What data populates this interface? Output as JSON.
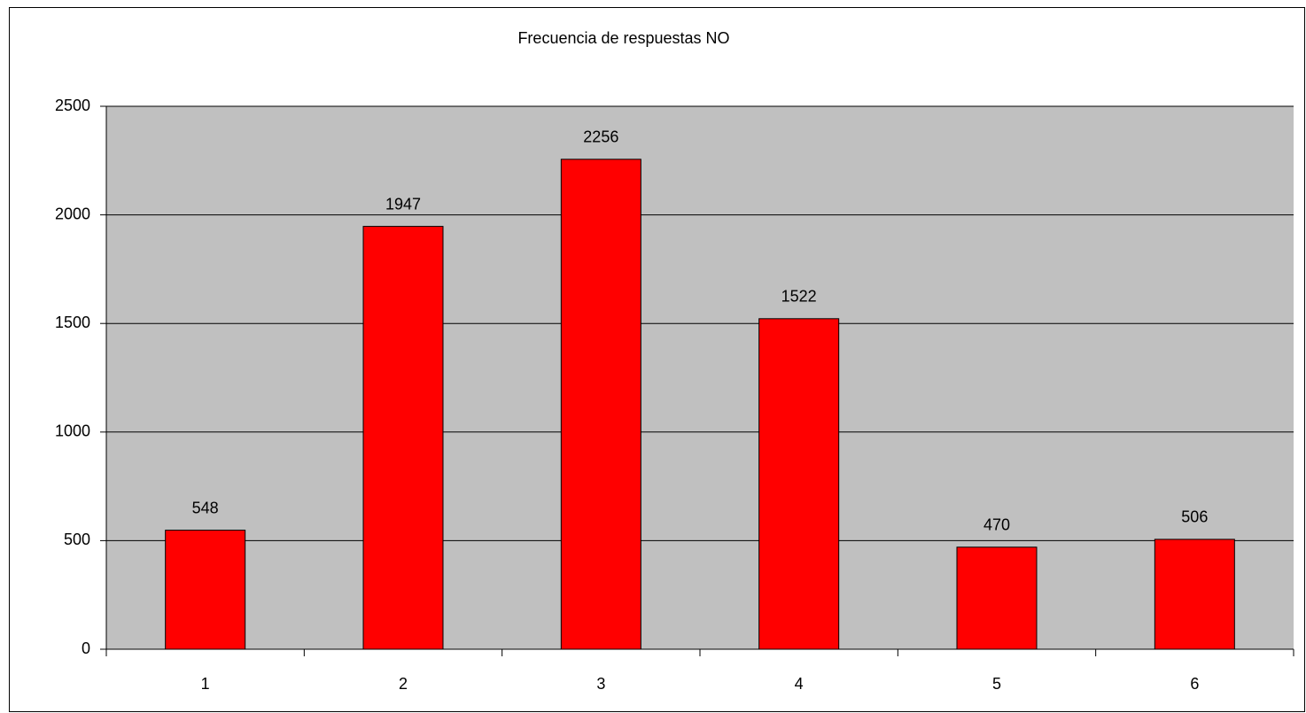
{
  "chart_data": {
    "type": "bar",
    "title": "Frecuencia de respuestas NO",
    "categories": [
      "1",
      "2",
      "3",
      "4",
      "5",
      "6"
    ],
    "values": [
      548,
      1947,
      2256,
      1522,
      470,
      506
    ],
    "color": "#ff0000",
    "ylim": [
      0,
      2500
    ],
    "yticks": [
      0,
      500,
      1000,
      1500,
      2000,
      2500
    ],
    "grid": true
  }
}
